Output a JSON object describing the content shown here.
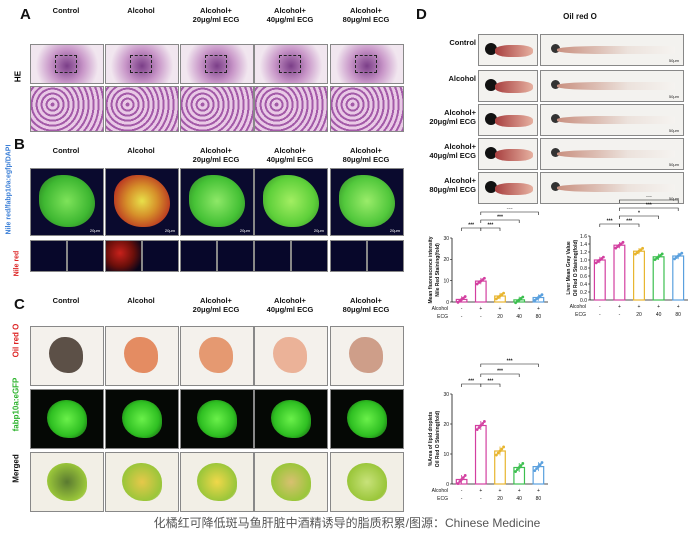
{
  "panels": {
    "A": {
      "label": "A",
      "row_label": "HE",
      "headers": [
        "Control",
        "Alcohol",
        "Alcohol+\n20μg/ml ECG",
        "Alcohol+\n40μg/ml ECG",
        "Alcohol+\n80μg/ml ECG"
      ]
    },
    "B": {
      "label": "B",
      "row_label_top": "Nile red/fabp10a:egfp/DAPI",
      "row_label_bottom": "Nile red",
      "headers": [
        "Control",
        "Alcohol",
        "Alcohol+\n20μg/ml ECG",
        "Alcohol+\n40μg/ml ECG",
        "Alcohol+\n80μg/ml ECG"
      ]
    },
    "C": {
      "label": "C",
      "row_labels": [
        "Oil red O",
        "fabp10a:eGFP",
        "Merged"
      ],
      "headers": [
        "Control",
        "Alcohol",
        "Alcohol+\n20μg/ml ECG",
        "Alcohol+\n40μg/ml ECG",
        "Alcohol+\n80μg/ml ECG"
      ]
    },
    "D": {
      "label": "D",
      "title": "Oil red O",
      "row_labels": [
        "Control",
        "Alcohol",
        "Alcohol+\n20μg/ml ECG",
        "Alcohol+\n40μg/ml ECG",
        "Alcohol+\n80μg/ml ECG"
      ]
    }
  },
  "scale_bar": "20μm",
  "scale_bar_d": "50μm",
  "chart_data": [
    {
      "type": "bar",
      "ylabel": "Mean fluorescence intensity\nNile Red Staining(fold)",
      "ylim": [
        0,
        30
      ],
      "yticks": [
        0,
        10,
        20,
        30
      ],
      "categories": [
        "-",
        "+",
        "20",
        "40",
        "80"
      ],
      "row1_label": "Alcohol",
      "row1": [
        "-",
        "+",
        "+",
        "+",
        "+"
      ],
      "row2_label": "ECG",
      "row2": [
        "-",
        "-",
        "20",
        "40",
        "80"
      ],
      "values": [
        1.2,
        9.8,
        2.8,
        1.0,
        2.1
      ],
      "colors": [
        "#d33fa0",
        "#d33fa0",
        "#e8b52e",
        "#3cbf4f",
        "#5aa0de"
      ],
      "significance": [
        "***",
        "***",
        "***",
        "***"
      ]
    },
    {
      "type": "bar",
      "ylabel": "Liver Mean Gray Value\nOil Red O Staining(fold)",
      "ylim": [
        0.0,
        1.6
      ],
      "yticks": [
        "0.0",
        "0.2",
        "0.4",
        "0.6",
        "0.8",
        "1.0",
        "1.2",
        "1.4",
        "1.6"
      ],
      "categories": [
        "-",
        "+",
        "20",
        "40",
        "80"
      ],
      "row1_label": "Alcohol",
      "row1": [
        "-",
        "+",
        "+",
        "+",
        "+"
      ],
      "row2_label": "ECG",
      "row2": [
        "-",
        "-",
        "20",
        "40",
        "80"
      ],
      "values": [
        1.0,
        1.37,
        1.22,
        1.08,
        1.1
      ],
      "colors": [
        "#d33fa0",
        "#d33fa0",
        "#e8b52e",
        "#3cbf4f",
        "#5aa0de"
      ],
      "significance": [
        "***",
        "***",
        "*",
        "***",
        "***"
      ]
    },
    {
      "type": "bar",
      "ylabel": "%Area of lipid droplets\nOil Red O Staining(fold)",
      "ylim": [
        0,
        30
      ],
      "yticks": [
        0,
        10,
        20,
        30
      ],
      "categories": [
        "-",
        "+",
        "20",
        "40",
        "80"
      ],
      "row1_label": "Alcohol",
      "row1": [
        "-",
        "+",
        "+",
        "+",
        "+"
      ],
      "row2_label": "ECG",
      "row2": [
        "-",
        "-",
        "20",
        "40",
        "80"
      ],
      "values": [
        1.5,
        19.5,
        11.0,
        5.5,
        5.8
      ],
      "colors": [
        "#d33fa0",
        "#d33fa0",
        "#e8b52e",
        "#3cbf4f",
        "#5aa0de"
      ],
      "significance": [
        "***",
        "***",
        "***",
        "***"
      ]
    }
  ],
  "caption": "化橘红可降低斑马鱼肝脏中酒精诱导的脂质积累/图源：Chinese Medicine"
}
